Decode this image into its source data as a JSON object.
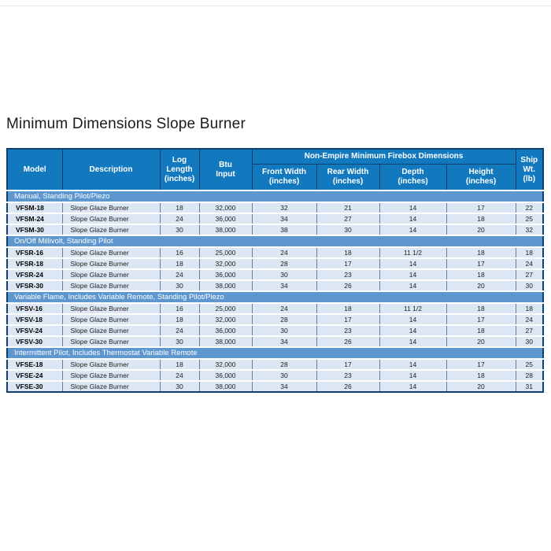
{
  "page": {
    "title": "Minimum Dimensions Slope Burner"
  },
  "colors": {
    "header_blue": "#1379bf",
    "section_blue": "#5e97d0",
    "row_blue": "#dce7f3",
    "border_navy": "#0d4170",
    "divider_gray": "#e9e9e9"
  },
  "table": {
    "group_header": "Non-Empire Minimum Firebox Dimensions",
    "columns": {
      "model": "Model",
      "description": "Description",
      "log_length": "Log\nLength\n(inches)",
      "btu_input": "Btu\nInput",
      "front_width": "Front Width\n(inches)",
      "rear_width": "Rear Width\n(inches)",
      "depth": "Depth\n(inches)",
      "height": "Height\n(inches)",
      "ship_wt": "Ship\nWt.\n(lb)"
    },
    "sections": [
      {
        "label": "Manual, Standing Pilot/Piezo",
        "rows": [
          [
            "VFSM-18",
            "Slope Glaze Burner",
            "18",
            "32,000",
            "32",
            "21",
            "14",
            "17",
            "22"
          ],
          [
            "VFSM-24",
            "Slope Glaze Burner",
            "24",
            "36,000",
            "34",
            "27",
            "14",
            "18",
            "25"
          ],
          [
            "VFSM-30",
            "Slope Glaze Burner",
            "30",
            "38,000",
            "38",
            "30",
            "14",
            "20",
            "32"
          ]
        ]
      },
      {
        "label": "On/Off Millivolt, Standing Pilot",
        "rows": [
          [
            "VFSR-16",
            "Slope Glaze Burner",
            "16",
            "25,000",
            "24",
            "18",
            "11 1/2",
            "18",
            "18"
          ],
          [
            "VFSR-18",
            "Slope Glaze Burner",
            "18",
            "32,000",
            "28",
            "17",
            "14",
            "17",
            "24"
          ],
          [
            "VFSR-24",
            "Slope Glaze Burner",
            "24",
            "36,000",
            "30",
            "23",
            "14",
            "18",
            "27"
          ],
          [
            "VFSR-30",
            "Slope Glaze Burner",
            "30",
            "38,000",
            "34",
            "26",
            "14",
            "20",
            "30"
          ]
        ]
      },
      {
        "label": "Variable Flame, Includes Variable Remote, Standing Pilot/Piezo",
        "rows": [
          [
            "VFSV-16",
            "Slope Glaze Burner",
            "16",
            "25,000",
            "24",
            "18",
            "11 1/2",
            "18",
            "18"
          ],
          [
            "VFSV-18",
            "Slope Glaze Burner",
            "18",
            "32,000",
            "28",
            "17",
            "14",
            "17",
            "24"
          ],
          [
            "VFSV-24",
            "Slope Glaze Burner",
            "24",
            "36,000",
            "30",
            "23",
            "14",
            "18",
            "27"
          ],
          [
            "VFSV-30",
            "Slope Glaze Burner",
            "30",
            "38,000",
            "34",
            "26",
            "14",
            "20",
            "30"
          ]
        ]
      },
      {
        "label": "Intermittent Pilot, Includes Thermostat Variable Remote",
        "rows": [
          [
            "VFSE-18",
            "Slope Glaze Burner",
            "18",
            "32,000",
            "28",
            "17",
            "14",
            "17",
            "25"
          ],
          [
            "VFSE-24",
            "Slope Glaze Burner",
            "24",
            "36,000",
            "30",
            "23",
            "14",
            "18",
            "28"
          ],
          [
            "VFSE-30",
            "Slope Glaze Burner",
            "30",
            "38,000",
            "34",
            "26",
            "14",
            "20",
            "31"
          ]
        ]
      }
    ],
    "cell_names": [
      "model-cell",
      "description-cell",
      "log-length-cell",
      "btu-input-cell",
      "front-width-cell",
      "rear-width-cell",
      "depth-cell",
      "height-cell",
      "ship-wt-cell"
    ]
  }
}
